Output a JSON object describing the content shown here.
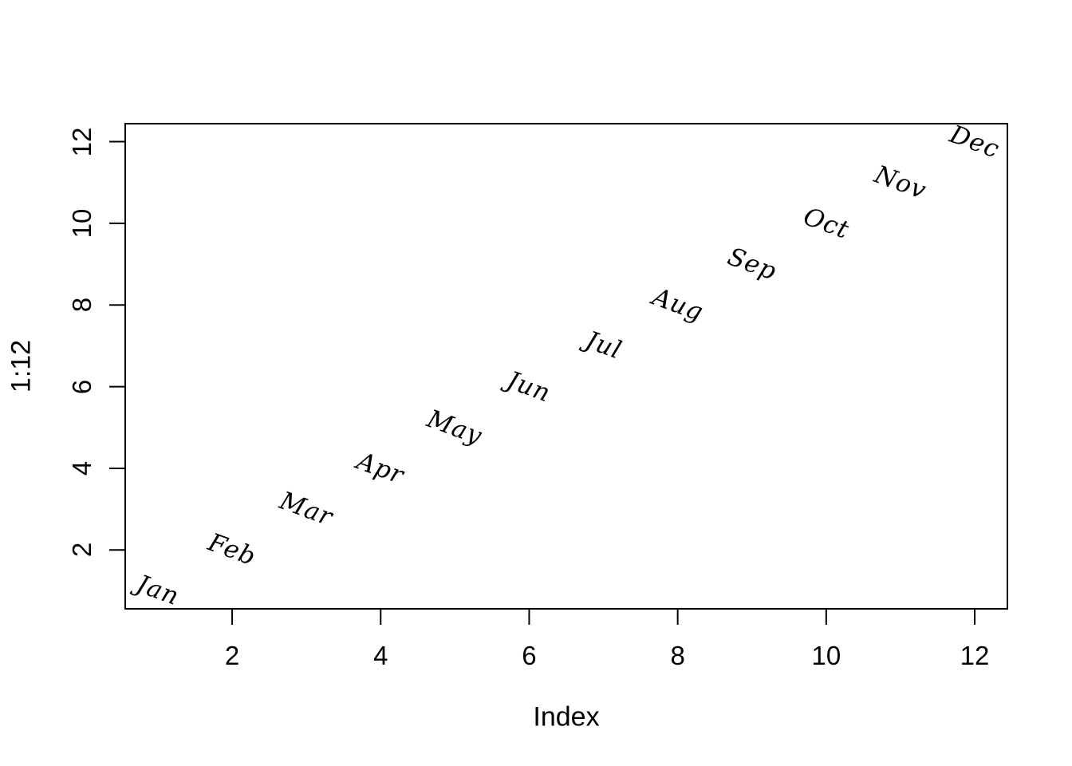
{
  "figure": {
    "background": "#ffffff",
    "axis_color": "#000000",
    "text_color": "#000000"
  },
  "chart_data": {
    "type": "scatter",
    "title": "",
    "xlabel": "Index",
    "ylabel": "1:12",
    "x": [
      1,
      2,
      3,
      4,
      5,
      6,
      7,
      8,
      9,
      10,
      11,
      12
    ],
    "y": [
      1,
      2,
      3,
      4,
      5,
      6,
      7,
      8,
      9,
      10,
      11,
      12
    ],
    "point_labels": [
      "Jan",
      "Feb",
      "Mar",
      "Apr",
      "May",
      "Jun",
      "Jul",
      "Aug",
      "Sep",
      "Oct",
      "Nov",
      "Dec"
    ],
    "marker": "text-label",
    "point_label_style": "cursive-script",
    "point_label_rotation_deg": 20,
    "x_ticks": [
      2,
      4,
      6,
      8,
      10,
      12
    ],
    "y_ticks": [
      2,
      4,
      6,
      8,
      10,
      12
    ],
    "x_tick_labels": [
      "2",
      "4",
      "6",
      "8",
      "10",
      "12"
    ],
    "y_tick_labels": [
      "2",
      "4",
      "6",
      "8",
      "10",
      "12"
    ],
    "xlim": [
      0.56,
      12.44
    ],
    "ylim": [
      0.56,
      12.44
    ],
    "grid": false,
    "legend": null
  }
}
